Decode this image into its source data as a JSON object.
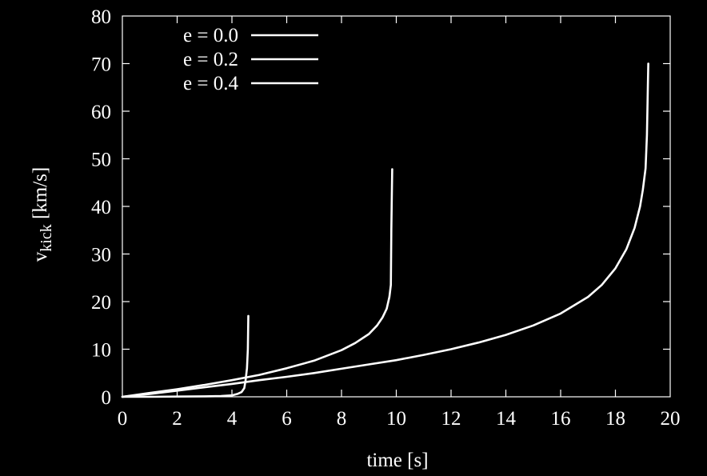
{
  "chart_data": {
    "type": "line",
    "xlabel": "time [s]",
    "ylabel_main": "v",
    "ylabel_sub": "kick",
    "ylabel_unit": " [km/s]",
    "xlim": [
      0,
      20
    ],
    "ylim": [
      0,
      80
    ],
    "xticks": [
      "0",
      "2",
      "4",
      "6",
      "8",
      "10",
      "12",
      "14",
      "16",
      "18",
      "20"
    ],
    "yticks": [
      "0",
      "10",
      "20",
      "30",
      "40",
      "50",
      "60",
      "70",
      "80"
    ],
    "grid": false,
    "legend_position": "top-left",
    "background": "#000000",
    "foreground": "#ffffff",
    "series": [
      {
        "name": "e = 0.0",
        "color": "#ffffff",
        "x": [
          0,
          1,
          2,
          3,
          4,
          5,
          6,
          7,
          8,
          9,
          10,
          11,
          12,
          13,
          14,
          15,
          16,
          17,
          17.5,
          18,
          18.4,
          18.7,
          18.9,
          19.0,
          19.1,
          19.15,
          19.2
        ],
        "y": [
          0,
          0.6,
          1.3,
          2.0,
          2.7,
          3.5,
          4.2,
          5.0,
          5.9,
          6.8,
          7.7,
          8.8,
          10.0,
          11.4,
          13.0,
          15.0,
          17.5,
          21.0,
          23.5,
          27.0,
          31.0,
          35.5,
          40.0,
          43.5,
          48.0,
          55.0,
          70.0
        ]
      },
      {
        "name": "e = 0.2",
        "color": "#ffffff",
        "x": [
          0,
          1,
          2,
          3,
          4,
          5,
          6,
          7,
          8,
          8.5,
          9.0,
          9.3,
          9.5,
          9.65,
          9.75,
          9.8,
          9.82,
          9.85
        ],
        "y": [
          0,
          0.8,
          1.6,
          2.5,
          3.5,
          4.6,
          6.0,
          7.6,
          9.8,
          11.3,
          13.2,
          15.0,
          16.7,
          18.5,
          21.0,
          23.5,
          35.0,
          47.8
        ]
      },
      {
        "name": "e = 0.4",
        "color": "#ffffff",
        "x": [
          0,
          1,
          2,
          3,
          3.6,
          4.0,
          4.2,
          4.35,
          4.45,
          4.5,
          4.55,
          4.58,
          4.6
        ],
        "y": [
          0,
          0.0,
          0.05,
          0.1,
          0.15,
          0.3,
          0.6,
          1.0,
          1.8,
          3.5,
          6.0,
          10.0,
          17.0
        ]
      }
    ]
  }
}
